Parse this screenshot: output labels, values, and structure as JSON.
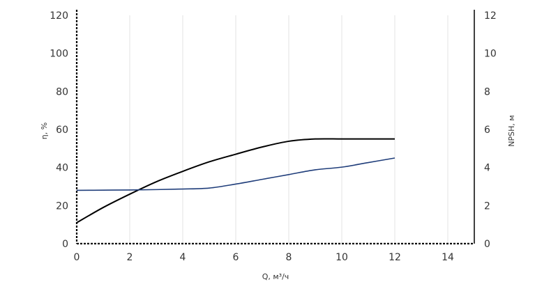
{
  "chart_data": {
    "type": "line",
    "xlabel": "Q, м³/ч",
    "ylabel_left": "η, %",
    "ylabel_right": "NPSH, м",
    "xlim": [
      0,
      15
    ],
    "ylim_left": [
      0,
      120
    ],
    "ylim_right": [
      0,
      12
    ],
    "x_ticks": [
      "0",
      "2",
      "4",
      "6",
      "8",
      "10",
      "12",
      "14"
    ],
    "y_left_ticks": [
      "0",
      "20",
      "40",
      "60",
      "80",
      "100",
      "120"
    ],
    "y_right_ticks": [
      "0",
      "2",
      "4",
      "6",
      "8",
      "10",
      "12"
    ],
    "grid": "vertical",
    "series": [
      {
        "axis": "left",
        "color": "#000000",
        "x": [
          0,
          1,
          2,
          3,
          4,
          5,
          6,
          7,
          8,
          9,
          10,
          11,
          12
        ],
        "y": [
          11,
          19,
          26,
          32.5,
          38,
          43,
          47,
          50.8,
          53.8,
          55,
          55,
          55,
          55
        ]
      },
      {
        "axis": "right",
        "color": "#1f3d7a",
        "x": [
          0,
          1,
          2,
          3,
          4,
          5,
          6,
          7,
          8,
          9,
          10,
          11,
          12
        ],
        "y": [
          2.8,
          2.81,
          2.82,
          2.84,
          2.87,
          2.92,
          3.13,
          3.38,
          3.63,
          3.88,
          4.02,
          4.26,
          4.5
        ]
      }
    ]
  }
}
